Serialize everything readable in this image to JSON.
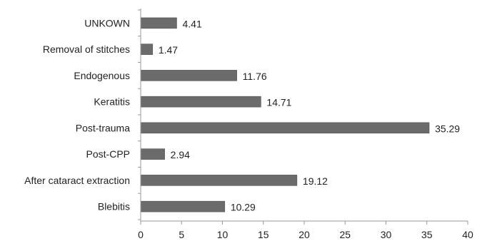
{
  "chart_data": {
    "type": "bar",
    "orientation": "horizontal",
    "categories": [
      "UNKOWN",
      "Removal of stitches",
      "Endogenous",
      "Keratitis",
      "Post-trauma",
      "Post-CPP",
      "After cataract extraction",
      "Blebitis"
    ],
    "values": [
      4.41,
      1.47,
      11.76,
      14.71,
      35.29,
      2.94,
      19.12,
      10.29
    ],
    "data_labels": [
      "4.41",
      "1.47",
      "11.76",
      "14.71",
      "35.29",
      "2.94",
      "19.12",
      "10.29"
    ],
    "xlim": [
      0,
      40
    ],
    "x_ticks": [
      0,
      5,
      10,
      15,
      20,
      25,
      30,
      35,
      40
    ],
    "title": "",
    "xlabel": "",
    "ylabel": "",
    "grid": false,
    "legend": "none",
    "bar_color": "#6b6b6b",
    "bar_edge_color": "#4a4a4a"
  }
}
